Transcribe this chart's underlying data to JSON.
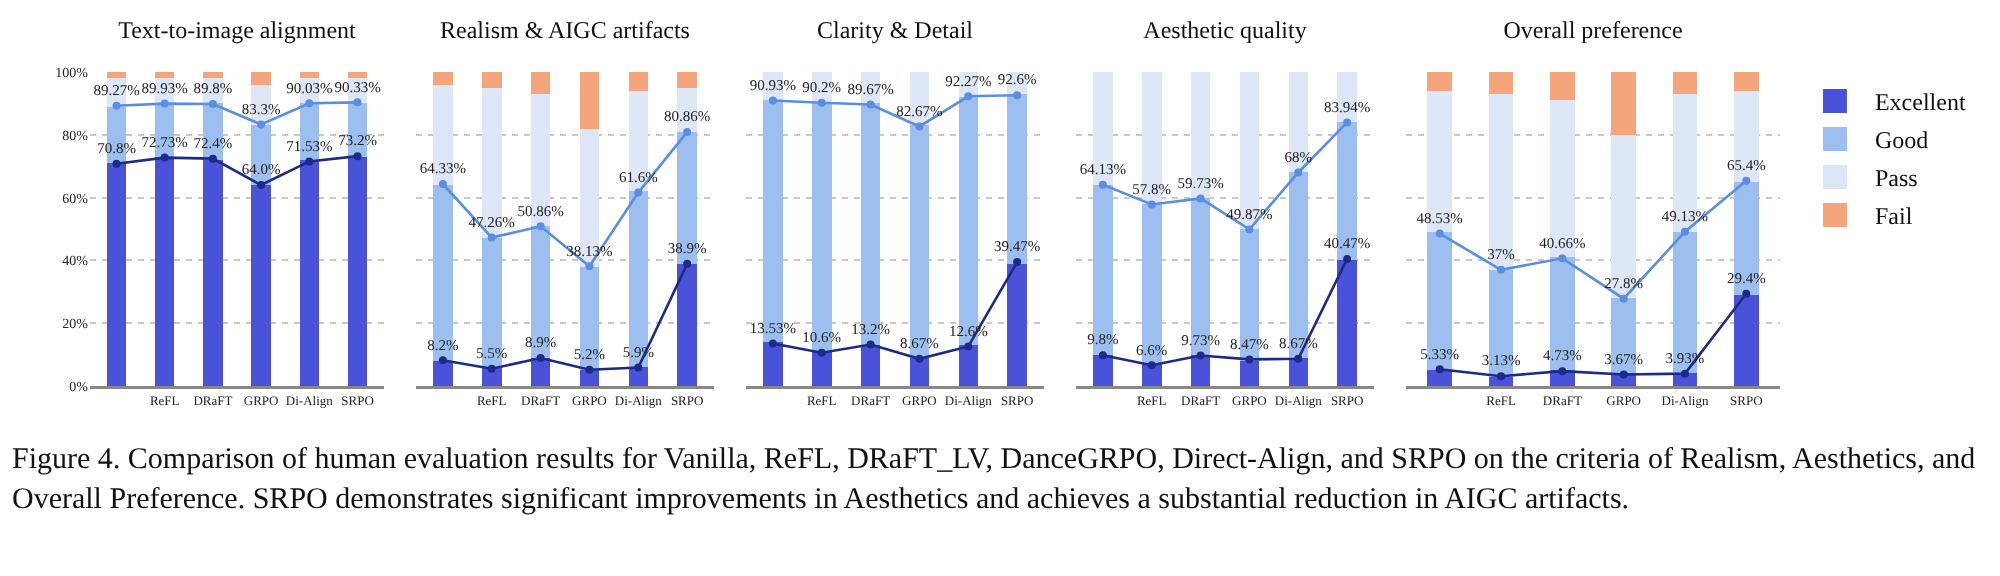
{
  "chart_data": [
    {
      "type": "bar",
      "title": "Text-to-image alignment",
      "stacked": true,
      "categories": [
        null,
        "ReFL",
        "DRaFT",
        "GRPO",
        "Di-Align",
        "SRPO"
      ],
      "ylim": [
        0,
        100
      ],
      "yticks": [
        {
          "value": 0,
          "label": "0%"
        },
        {
          "value": 20,
          "label": "20%"
        },
        {
          "value": 40,
          "label": "40%"
        },
        {
          "value": 60,
          "label": "60%"
        },
        {
          "value": 80,
          "label": "80%"
        },
        {
          "value": 100,
          "label": "100%"
        }
      ],
      "grid": "y",
      "legend": false,
      "annotations": [
        "Figure 4. Comparison of human evaluation results for Vanilla, ReFL, DRaFT_LV, DanceGRPO, Direct-Align, and SRPO on the criteria of Realism, Aesthetics, and Overall Preference. SRPO demonstrates significant improvements in Aesthetics and achieves a substantial reduction in AIGC artifacts."
      ],
      "series": [
        {
          "color": "#4a52d9",
          "values": [
            71,
            73,
            72,
            64,
            72,
            73
          ]
        },
        {
          "color": "#9dbff0",
          "values": [
            18,
            17,
            18,
            19,
            18,
            17
          ]
        },
        {
          "color": "#dde7f7",
          "values": [
            9,
            8,
            8,
            13,
            8,
            8
          ]
        },
        {
          "color": "#f4a57c",
          "values": [
            2,
            2,
            2,
            4,
            2,
            2
          ]
        },
        {
          "type": "line",
          "color": "#1c2a8a",
          "marker": "circle",
          "values": [
            70.8,
            72.73,
            72.4,
            64,
            71.53,
            73.2
          ],
          "value_labels": [
            "70.8%",
            "72.73%",
            "72.4%",
            "64.0%",
            "71.53%",
            "73.2%"
          ]
        },
        {
          "type": "line",
          "color": "#5a8ee0",
          "marker": "circle",
          "values": [
            89.27,
            89.93,
            89.8,
            83.3,
            90.03,
            90.33
          ],
          "value_labels": [
            "89.27%",
            "89.93%",
            "89.8%",
            "83.3%",
            "90.03%",
            "90.33%"
          ]
        }
      ]
    },
    {
      "type": "bar",
      "title": "Realism & AIGC artifacts",
      "stacked": true,
      "categories": [
        null,
        "ReFL",
        "DRaFT",
        "GRPO",
        "Di-Align",
        "SRPO"
      ],
      "ylim": [
        0,
        100
      ],
      "yticks": [
        0,
        20,
        40,
        60,
        80,
        100
      ],
      "tick_labels": "x",
      "grid": "y",
      "legend": false,
      "series": [
        {
          "color": "#4a52d9",
          "values": [
            8,
            6,
            9,
            5,
            6,
            39
          ]
        },
        {
          "color": "#9dbff0",
          "values": [
            56,
            41,
            42,
            33,
            56,
            42
          ]
        },
        {
          "color": "#dde7f7",
          "values": [
            32,
            48,
            42,
            44,
            32,
            14
          ]
        },
        {
          "color": "#f4a57c",
          "values": [
            4,
            5,
            7,
            18,
            6,
            5
          ]
        },
        {
          "type": "line",
          "color": "#1c2a8a",
          "marker": "circle",
          "values": [
            8.2,
            5.5,
            8.9,
            5.2,
            5.9,
            38.9
          ],
          "value_labels": [
            "8.2%",
            "5.5%",
            "8.9%",
            "5.2%",
            "5.9%",
            "38.9%"
          ]
        },
        {
          "type": "line",
          "color": "#5a8ee0",
          "marker": "circle",
          "values": [
            64.33,
            47.26,
            50.86,
            38.13,
            61.6,
            80.86
          ],
          "value_labels": [
            "64.33%",
            "47.26%",
            "50.86%",
            "38.13%",
            "61.6%",
            "80.86%"
          ]
        }
      ]
    },
    {
      "type": "bar",
      "title": "Clarity & Detail",
      "stacked": true,
      "categories": [
        null,
        "ReFL",
        "DRaFT",
        "GRPO",
        "Di-Align",
        "SRPO"
      ],
      "ylim": [
        0,
        100
      ],
      "yticks": [
        0,
        20,
        40,
        60,
        80,
        100
      ],
      "tick_labels": "x",
      "grid": "y",
      "legend": false,
      "series": [
        {
          "color": "#4a52d9",
          "values": [
            14,
            11,
            13,
            9,
            13,
            39
          ]
        },
        {
          "color": "#9dbff0",
          "values": [
            77,
            79,
            77,
            74,
            79,
            54
          ]
        },
        {
          "color": "#dde7f7",
          "values": [
            9,
            10,
            10,
            17,
            8,
            7
          ]
        },
        {
          "type": "line",
          "color": "#1c2a8a",
          "marker": "circle",
          "values": [
            13.53,
            10.6,
            13.2,
            8.67,
            12.6,
            39.47
          ],
          "value_labels": [
            "13.53%",
            "10.6%",
            "13.2%",
            "8.67%",
            "12.6%",
            "39.47%"
          ]
        },
        {
          "type": "line",
          "color": "#5a8ee0",
          "marker": "circle",
          "values": [
            90.93,
            90.2,
            89.67,
            82.67,
            92.27,
            92.6
          ],
          "value_labels": [
            "90.93%",
            "90.2%",
            "89.67%",
            "82.67%",
            "92.27%",
            "92.6%"
          ]
        }
      ]
    },
    {
      "type": "bar",
      "title": "Aesthetic quality",
      "stacked": true,
      "categories": [
        null,
        "ReFL",
        "DRaFT",
        "GRPO",
        "Di-Align",
        "SRPO"
      ],
      "ylim": [
        0,
        100
      ],
      "yticks": [
        0,
        20,
        40,
        60,
        80,
        100
      ],
      "tick_labels": "x",
      "grid": "y",
      "legend": false,
      "series": [
        {
          "color": "#4a52d9",
          "values": [
            10,
            7,
            10,
            8,
            9,
            40
          ]
        },
        {
          "color": "#9dbff0",
          "values": [
            54,
            51,
            50,
            42,
            59,
            44
          ]
        },
        {
          "color": "#dde7f7",
          "values": [
            36,
            42,
            40,
            50,
            32,
            16
          ]
        },
        {
          "type": "line",
          "color": "#1c2a8a",
          "marker": "circle",
          "values": [
            9.8,
            6.6,
            9.73,
            8.47,
            8.67,
            40.47
          ],
          "value_labels": [
            "9.8%",
            "6.6%",
            "9.73%",
            "8.47%",
            "8.67%",
            "40.47%"
          ]
        },
        {
          "type": "line",
          "color": "#5a8ee0",
          "marker": "circle",
          "values": [
            64.13,
            57.8,
            59.73,
            49.87,
            68,
            83.94
          ],
          "value_labels": [
            "64.13%",
            "57.8%",
            "59.73%",
            "49.87%",
            "68%",
            "83.94%"
          ]
        }
      ]
    },
    {
      "type": "bar",
      "title": "Overall preference",
      "stacked": true,
      "categories": [
        null,
        "ReFL",
        "DRaFT",
        "GRPO",
        "Di-Align",
        "SRPO"
      ],
      "ylim": [
        0,
        100
      ],
      "yticks": [
        0,
        20,
        40,
        60,
        80,
        100
      ],
      "tick_labels": "x",
      "grid": "y",
      "legend": "right",
      "series": [
        {
          "name": "Excellent",
          "color": "#4a52d9",
          "values": [
            5,
            3,
            5,
            4,
            4,
            29
          ]
        },
        {
          "name": "Good",
          "color": "#9dbff0",
          "values": [
            44,
            34,
            36,
            24,
            45,
            36
          ]
        },
        {
          "name": "Pass",
          "color": "#dde7f7",
          "values": [
            45,
            56,
            50,
            52,
            44,
            29
          ]
        },
        {
          "name": "Fail",
          "color": "#f4a57c",
          "values": [
            6,
            7,
            9,
            20,
            7,
            6
          ]
        },
        {
          "type": "line",
          "color": "#1c2a8a",
          "marker": "circle",
          "values": [
            5.33,
            3.13,
            4.73,
            3.67,
            3.93,
            29.4
          ],
          "value_labels": [
            "5.33%",
            "3.13%",
            "4.73%",
            "3.67%",
            "3.93%",
            "29.4%"
          ]
        },
        {
          "type": "line",
          "color": "#5a8ee0",
          "marker": "circle",
          "values": [
            48.53,
            37,
            40.66,
            27.8,
            49.13,
            65.4
          ],
          "value_labels": [
            "48.53%",
            "37%",
            "40.66%",
            "27.8%",
            "49.13%",
            "65.4%"
          ]
        }
      ]
    }
  ]
}
